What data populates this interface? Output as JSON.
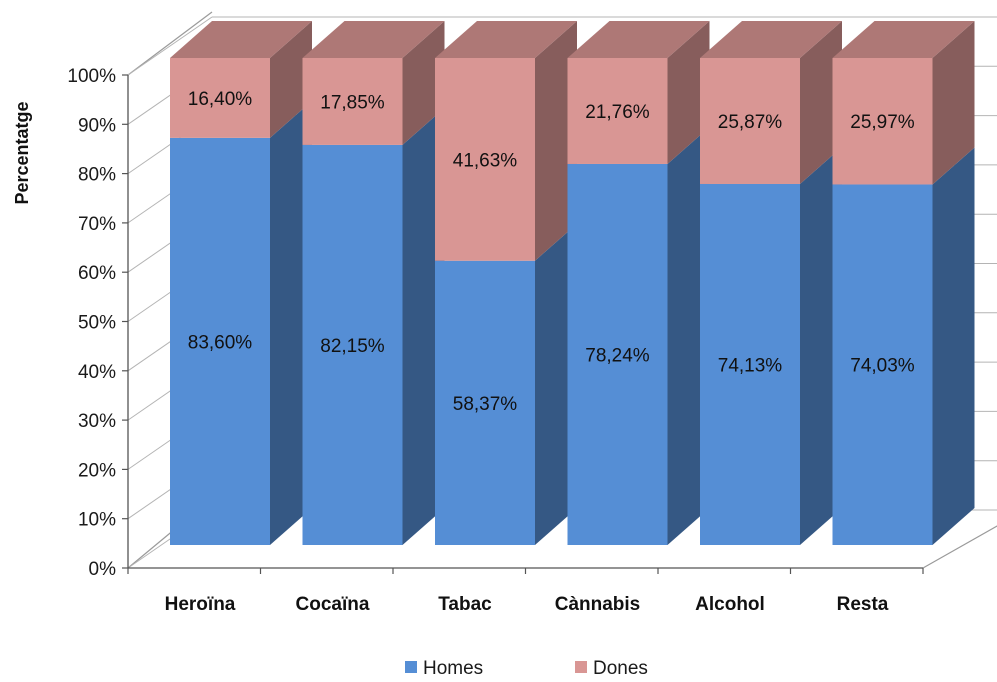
{
  "chart_data": {
    "type": "bar",
    "stacked": true,
    "percent_stacked": true,
    "three_d": true,
    "categories": [
      "Heroïna",
      "Cocaïna",
      "Tabac",
      "Cànnabis",
      "Alcohol",
      "Resta"
    ],
    "series": [
      {
        "name": "Homes",
        "values": [
          83.6,
          82.15,
          58.37,
          78.24,
          74.13,
          74.03
        ],
        "labels": [
          "83,60%",
          "82,15%",
          "58,37%",
          "78,24%",
          "74,13%",
          "74,03%"
        ],
        "color": "#558ED5"
      },
      {
        "name": "Dones",
        "values": [
          16.4,
          17.85,
          41.63,
          21.76,
          25.87,
          25.97
        ],
        "labels": [
          "16,40%",
          "17,85%",
          "41,63%",
          "21,76%",
          "25,87%",
          "25,97%"
        ],
        "color": "#D99694"
      }
    ],
    "ylabel": "Percentatge",
    "xlabel": "",
    "ylim": [
      0,
      100
    ],
    "yticks": [
      "0%",
      "10%",
      "20%",
      "30%",
      "40%",
      "50%",
      "60%",
      "70%",
      "80%",
      "90%",
      "100%"
    ],
    "grid": true,
    "legend_position": "bottom"
  }
}
